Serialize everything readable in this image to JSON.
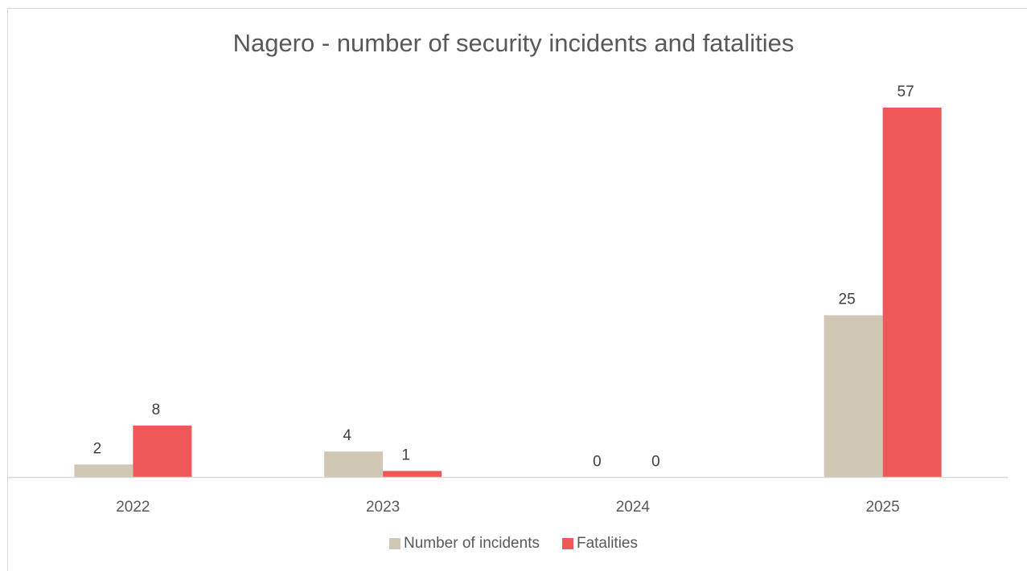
{
  "chart_data": {
    "type": "bar",
    "title": "Nagero - number of security incidents and fatalities",
    "xlabel": "",
    "ylabel": "",
    "categories": [
      "2022",
      "2023",
      "2024",
      "2025"
    ],
    "series": [
      {
        "name": "Number of incidents",
        "color": "#d0c8b4",
        "values": [
          2,
          4,
          0,
          25
        ]
      },
      {
        "name": "Fatalities",
        "color": "#ef5858",
        "values": [
          8,
          1,
          0,
          57
        ]
      }
    ],
    "ylim": [
      0,
      57
    ],
    "grid": false,
    "data_labels": true,
    "legend_position": "bottom"
  }
}
